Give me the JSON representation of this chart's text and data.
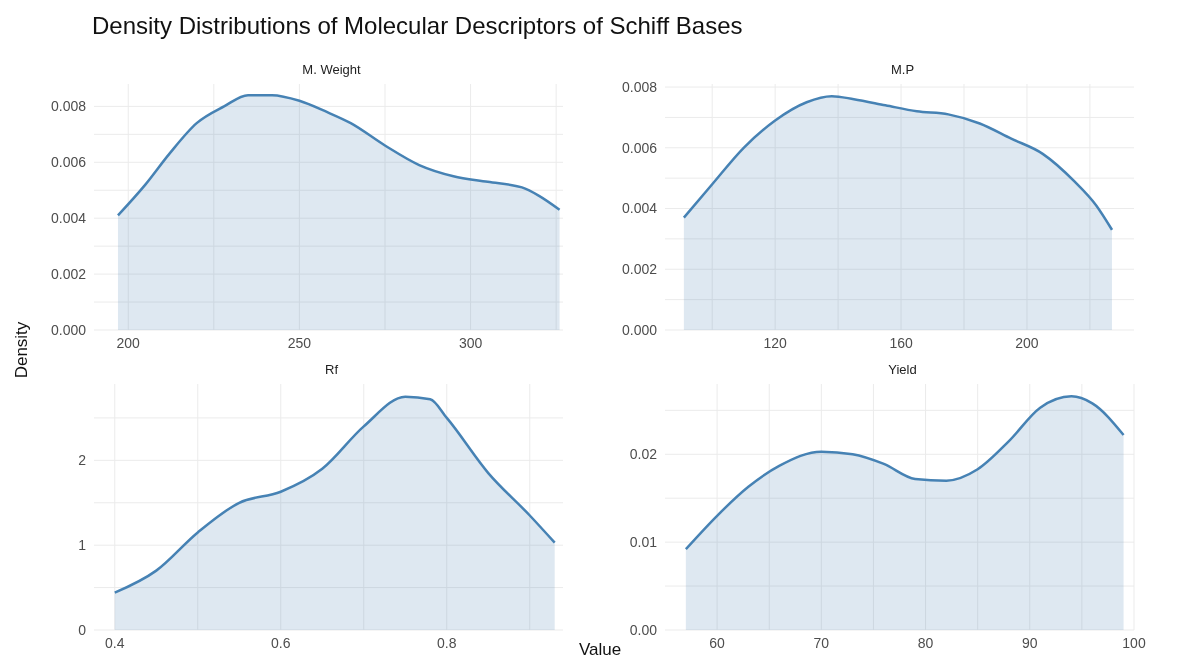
{
  "chart_data": [
    {
      "type": "area",
      "title": "Density Distributions of Molecular Descriptors of Schiff Bases",
      "subtitle": "M. Weight",
      "ylabel": "Density",
      "grid": true,
      "xlim": [
        190,
        327
      ],
      "xticks": [
        200,
        {
          "value": 225,
          "label": null
        },
        250,
        {
          "value": 275,
          "label": null
        },
        300,
        {
          "value": 325,
          "label": null
        }
      ],
      "ylim": [
        0,
        0.0088
      ],
      "yticks": [
        {
          "value": 0,
          "label": "0.000"
        },
        {
          "value": 0.001,
          "label": null
        },
        {
          "value": 0.002,
          "label": "0.002"
        },
        {
          "value": 0.003,
          "label": null
        },
        {
          "value": 0.004,
          "label": "0.004"
        },
        {
          "value": 0.005,
          "label": null
        },
        {
          "value": 0.006,
          "label": "0.006"
        },
        {
          "value": 0.007,
          "label": null
        },
        {
          "value": 0.008,
          "label": "0.008"
        }
      ],
      "series": [
        {
          "color": "#4682b4",
          "x": [
            197,
            205,
            212,
            220,
            228,
            235,
            242,
            250,
            258,
            265,
            275,
            285,
            295,
            305,
            315,
            320,
            326
          ],
          "values": [
            0.0041,
            0.0052,
            0.0063,
            0.0074,
            0.008,
            0.0084,
            0.0084,
            0.0082,
            0.0078,
            0.0074,
            0.0066,
            0.0059,
            0.0055,
            0.0053,
            0.0051,
            0.0048,
            0.0043
          ]
        }
      ]
    },
    {
      "type": "area",
      "subtitle": "M.P",
      "grid": true,
      "xlim": [
        85,
        234
      ],
      "xticks": [
        {
          "value": 100,
          "label": null
        },
        120,
        {
          "value": 140,
          "label": null
        },
        160,
        {
          "value": 180,
          "label": null
        },
        200,
        {
          "value": 220,
          "label": null
        }
      ],
      "ylim": [
        0,
        0.0081
      ],
      "yticks": [
        {
          "value": 0,
          "label": "0.000"
        },
        {
          "value": 0.001,
          "label": null
        },
        {
          "value": 0.002,
          "label": "0.002"
        },
        {
          "value": 0.003,
          "label": null
        },
        {
          "value": 0.004,
          "label": "0.004"
        },
        {
          "value": 0.005,
          "label": null
        },
        {
          "value": 0.006,
          "label": "0.006"
        },
        {
          "value": 0.007,
          "label": null
        },
        {
          "value": 0.008,
          "label": "0.008"
        }
      ],
      "series": [
        {
          "color": "#4682b4",
          "x": [
            91,
            100,
            110,
            120,
            130,
            138,
            145,
            155,
            165,
            175,
            185,
            195,
            205,
            215,
            222,
            227
          ],
          "values": [
            0.0037,
            0.0048,
            0.006,
            0.0069,
            0.0075,
            0.0077,
            0.0076,
            0.0074,
            0.0072,
            0.0071,
            0.0068,
            0.0063,
            0.0058,
            0.0049,
            0.0041,
            0.0033
          ]
        }
      ]
    },
    {
      "type": "area",
      "subtitle": "Rf",
      "xlabel": "Value",
      "grid": true,
      "xlim": [
        0.375,
        0.94
      ],
      "xticks": [
        0.4,
        {
          "value": 0.5,
          "label": null
        },
        0.6,
        {
          "value": 0.7,
          "label": null
        },
        0.8,
        {
          "value": 0.9,
          "label": null
        }
      ],
      "ylim": [
        0,
        2.9
      ],
      "yticks": [
        0,
        {
          "value": 0.5,
          "label": null
        },
        1,
        {
          "value": 1.5,
          "label": null
        },
        2,
        {
          "value": 2.5,
          "label": null
        }
      ],
      "series": [
        {
          "color": "#4682b4",
          "x": [
            0.4,
            0.45,
            0.5,
            0.55,
            0.6,
            0.65,
            0.7,
            0.75,
            0.78,
            0.8,
            0.85,
            0.9,
            0.93
          ],
          "values": [
            0.44,
            0.7,
            1.15,
            1.5,
            1.63,
            1.9,
            2.4,
            2.75,
            2.72,
            2.5,
            1.85,
            1.35,
            1.03
          ]
        }
      ]
    },
    {
      "type": "area",
      "subtitle": "Yield",
      "grid": true,
      "xlim": [
        55,
        100
      ],
      "xticks": [
        60,
        {
          "value": 65,
          "label": null
        },
        70,
        {
          "value": 75,
          "label": null
        },
        80,
        {
          "value": 85,
          "label": null
        },
        90,
        {
          "value": 95,
          "label": null
        },
        100
      ],
      "ylim": [
        0,
        0.028
      ],
      "yticks": [
        {
          "value": 0,
          "label": "0.00"
        },
        {
          "value": 0.005,
          "label": null
        },
        {
          "value": 0.01,
          "label": "0.01"
        },
        {
          "value": 0.015,
          "label": null
        },
        {
          "value": 0.02,
          "label": "0.02"
        },
        {
          "value": 0.025,
          "label": null
        }
      ],
      "series": [
        {
          "color": "#4682b4",
          "x": [
            57,
            60,
            63,
            66,
            70,
            73,
            76,
            79,
            82,
            85,
            88,
            91,
            94,
            96,
            99
          ],
          "values": [
            0.0092,
            0.013,
            0.0163,
            0.0187,
            0.0203,
            0.02,
            0.0189,
            0.0172,
            0.017,
            0.0183,
            0.0215,
            0.0253,
            0.0266,
            0.0258,
            0.0222
          ]
        }
      ]
    }
  ]
}
